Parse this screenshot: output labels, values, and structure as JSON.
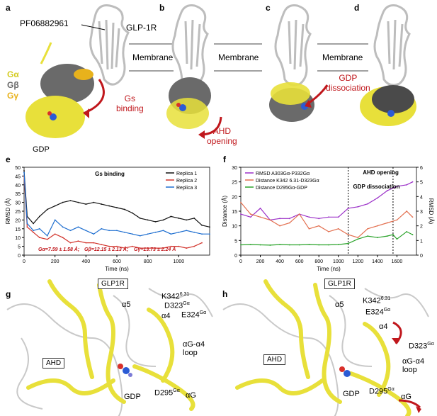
{
  "panels": {
    "a": {
      "letter": "a",
      "ligand": "PF06882961",
      "receptor": "GLP-1R",
      "membrane": "Membrane",
      "legend": [
        "Gα",
        "Gβ",
        "Gγ"
      ],
      "gdp": "GDP",
      "event": "Gs\nbinding"
    },
    "b": {
      "letter": "b",
      "membrane": "Membrane",
      "event": "AHD\nopening"
    },
    "c": {
      "letter": "c",
      "membrane": "Membrane",
      "event": "GDP\ndissociation"
    },
    "d": {
      "letter": "d"
    },
    "e": {
      "letter": "e"
    },
    "f": {
      "letter": "f"
    },
    "g": {
      "letter": "g",
      "labels": {
        "glp1r": "GLP1R",
        "a5": "α5",
        "k342": "K342",
        "k342_sup": "6.31",
        "d323": "D323",
        "d323_sup": "Gα",
        "a4": "α4",
        "e324": "E324",
        "e324_sup": "Gα",
        "loop": "αG-α4\nloop",
        "ahd": "AHD",
        "gdp": "GDP",
        "d295": "D295",
        "d295_sup": "Gα",
        "ag": "αG"
      }
    },
    "h": {
      "letter": "h",
      "labels": {
        "glp1r": "GLP1R",
        "a5": "α5",
        "k342": "K342",
        "k342_sup": "6.31",
        "e324": "E324",
        "e324_sup": "Gα",
        "a4": "α4",
        "d323": "D323",
        "d323_sup": "Gα",
        "loop": "αG-α4\nloop",
        "ahd": "AHD",
        "gdp": "GDP",
        "d295": "D295",
        "d295_sup": "Gα",
        "ag": "αG"
      }
    }
  },
  "colors": {
    "galpha": "#e8e03a",
    "gbeta": "#6a6a6a",
    "ggamma": "#e8b21c",
    "receptor": "#bdbdbd",
    "arrow": "#c0171c"
  },
  "chart_data": [
    {
      "type": "line",
      "title": "Gs binding",
      "xlabel": "Time (ns)",
      "ylabel": "RMSD (Å)",
      "xlim": [
        0,
        1200
      ],
      "ylim": [
        0,
        50
      ],
      "xticks": [
        0,
        200,
        400,
        600,
        800,
        1000
      ],
      "yticks": [
        0,
        5,
        10,
        15,
        20,
        25,
        30,
        35,
        40,
        45,
        50
      ],
      "legend_position": "top-right",
      "annotation_parts": [
        "Gα=7.59 ± 1.58 Å;",
        "Gβ=12.15 ± 2.13 Å;",
        "Gγ=13.73 ± 2.24 Å"
      ],
      "series": [
        {
          "name": "Replica 1",
          "color": "#111111",
          "x": [
            0,
            20,
            60,
            100,
            150,
            200,
            250,
            300,
            350,
            400,
            450,
            500,
            550,
            600,
            650,
            700,
            750,
            800,
            850,
            900,
            950,
            1000,
            1050,
            1100,
            1150,
            1200
          ],
          "values": [
            48,
            22,
            18,
            22,
            26,
            28,
            30,
            31,
            30,
            29,
            30,
            29,
            28,
            27,
            26,
            24,
            21,
            20,
            19,
            20,
            22,
            21,
            20,
            21,
            17,
            16
          ]
        },
        {
          "name": "Replica 2",
          "color": "#d2342c",
          "x": [
            0,
            20,
            60,
            100,
            150,
            200,
            250,
            300,
            350,
            400,
            450,
            500,
            550,
            600,
            650,
            700,
            750,
            800,
            850,
            900,
            950,
            1000,
            1050,
            1100,
            1150
          ],
          "values": [
            45,
            16,
            13,
            10,
            9,
            12,
            10,
            7,
            8,
            7,
            7,
            6,
            5,
            5,
            4,
            5,
            4,
            4,
            4,
            4,
            5,
            5,
            4,
            5,
            7
          ]
        },
        {
          "name": "Replica 3",
          "color": "#1f6fd0",
          "x": [
            0,
            20,
            60,
            100,
            150,
            200,
            250,
            300,
            350,
            400,
            450,
            500,
            550,
            600,
            650,
            700,
            750,
            800,
            850,
            900,
            950,
            1000,
            1050,
            1100,
            1150,
            1200
          ],
          "values": [
            47,
            18,
            14,
            15,
            11,
            20,
            16,
            14,
            16,
            14,
            12,
            15,
            14,
            14,
            13,
            12,
            11,
            12,
            13,
            14,
            12,
            13,
            14,
            13,
            12,
            12
          ]
        }
      ]
    },
    {
      "type": "line",
      "title": "",
      "xlabel": "Time (ns)",
      "ylabel": "Distance (Å)",
      "ylabel_right": "RMSD (Å)",
      "xlim": [
        0,
        1800
      ],
      "ylim": [
        0,
        30
      ],
      "ylim_right": [
        0,
        6
      ],
      "xticks": [
        0,
        200,
        400,
        600,
        800,
        1000,
        1200,
        1400,
        1600
      ],
      "yticks": [
        0,
        5,
        10,
        15,
        20,
        25,
        30
      ],
      "yticks_right": [
        0,
        1,
        2,
        3,
        4,
        5,
        6
      ],
      "legend_position": "top-left",
      "annotations": [
        "AHD opening",
        "GDP dissociation"
      ],
      "event_lines_x": [
        1100,
        1560
      ],
      "series": [
        {
          "name": "RMSD A303Gα-P332Gα",
          "axis": "right",
          "color": "#9b30c8",
          "x": [
            0,
            100,
            200,
            300,
            400,
            500,
            600,
            700,
            800,
            900,
            1000,
            1100,
            1200,
            1300,
            1400,
            1500,
            1600,
            1700,
            1760
          ],
          "values": [
            2.8,
            2.6,
            3.2,
            2.4,
            2.5,
            2.5,
            2.8,
            2.6,
            2.5,
            2.6,
            2.6,
            3.2,
            3.3,
            3.5,
            3.9,
            4.4,
            4.7,
            4.8,
            5.0
          ]
        },
        {
          "name": "Distance K342 6.31-D323Gα",
          "axis": "left",
          "color": "#e36f4f",
          "x": [
            0,
            100,
            200,
            300,
            400,
            500,
            600,
            700,
            800,
            900,
            1000,
            1100,
            1200,
            1300,
            1400,
            1500,
            1600,
            1700,
            1760
          ],
          "values": [
            18,
            14,
            13,
            12,
            10,
            11,
            14,
            9,
            10,
            8,
            9,
            7,
            6,
            9,
            10,
            11,
            12,
            15,
            13
          ]
        },
        {
          "name": "Distance D295Gα-GDP",
          "axis": "left",
          "color": "#2aa32a",
          "x": [
            0,
            100,
            200,
            300,
            400,
            500,
            600,
            700,
            800,
            900,
            1000,
            1100,
            1200,
            1300,
            1400,
            1500,
            1560,
            1600,
            1700,
            1760
          ],
          "values": [
            3.5,
            3.6,
            3.5,
            3.4,
            3.6,
            3.5,
            3.5,
            3.6,
            3.5,
            3.5,
            3.6,
            4.0,
            5.5,
            6.5,
            6.0,
            6.5,
            7.0,
            5.5,
            8.0,
            7.0
          ]
        }
      ]
    }
  ]
}
